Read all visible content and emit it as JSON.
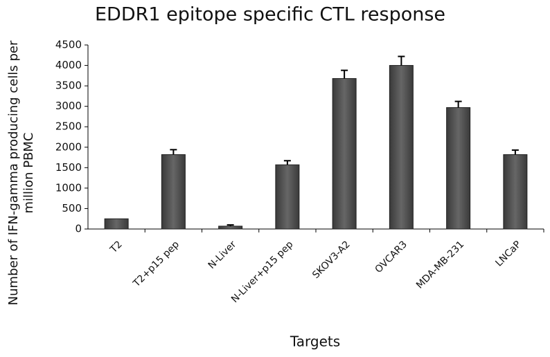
{
  "chart_data": {
    "type": "bar",
    "title": "EDDR1 epitope specific CTL response",
    "x_label": "Targets",
    "y_label": [
      "Number of IFN-gamma producing cells per",
      "million PBMC"
    ],
    "categories": [
      "T2",
      "T2+p15 pep",
      "N-Liver",
      "N-Liver+p15 pep",
      "SKOV3-A2",
      "OVCAR3",
      "MDA-MB-231",
      "LNCaP"
    ],
    "values": [
      250,
      1820,
      70,
      1570,
      3680,
      4000,
      2970,
      1820
    ],
    "errors": [
      0,
      120,
      30,
      100,
      200,
      220,
      150,
      110
    ],
    "color": "#555555",
    "ylim": [
      0,
      4500
    ],
    "yticks": [
      0,
      500,
      1000,
      1500,
      2000,
      2500,
      3000,
      3500,
      4000,
      4500
    ]
  }
}
